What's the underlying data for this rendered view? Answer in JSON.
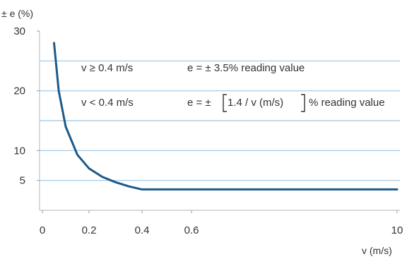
{
  "chart_data": {
    "type": "line",
    "ylabel": "± e (%)",
    "xlabel": "v (m/s)",
    "ylim": [
      0,
      30
    ],
    "x_ticks": [
      {
        "label": "0",
        "value": 0
      },
      {
        "label": "0.2",
        "value": 0.2
      },
      {
        "label": "0.4",
        "value": 0.4
      },
      {
        "label": "0.6",
        "value": 0.6
      },
      {
        "label": "10",
        "value": 10
      }
    ],
    "y_ticks": [
      {
        "label": "5",
        "value": 5
      },
      {
        "label": "10",
        "value": 10
      },
      {
        "label": "20",
        "value": 20
      },
      {
        "label": "30",
        "value": 30
      }
    ],
    "gridlines_y": [
      5,
      10,
      15,
      20,
      25
    ],
    "series": [
      {
        "color": "#1b5a8a",
        "points": [
          {
            "x": 0.05,
            "y": 28
          },
          {
            "x": 0.07,
            "y": 20
          },
          {
            "x": 0.1,
            "y": 14
          },
          {
            "x": 0.15,
            "y": 9.3
          },
          {
            "x": 0.2,
            "y": 7
          },
          {
            "x": 0.25,
            "y": 5.6
          },
          {
            "x": 0.3,
            "y": 4.7
          },
          {
            "x": 0.35,
            "y": 4
          },
          {
            "x": 0.4,
            "y": 3.5
          },
          {
            "x": 10,
            "y": 3.5
          }
        ]
      }
    ],
    "annotations": [
      {
        "condition": "v ≥ 0.4 m/s",
        "formula": "e = ± 3.5% reading value"
      },
      {
        "condition": "v < 0.4 m/s",
        "formula_prefix": "e = ±",
        "formula_inner": "1.4 / v (m/s)",
        "formula_suffix": "% reading value"
      }
    ],
    "grid_color": "#9cc4e4",
    "line_color": "#1b5a8a"
  }
}
